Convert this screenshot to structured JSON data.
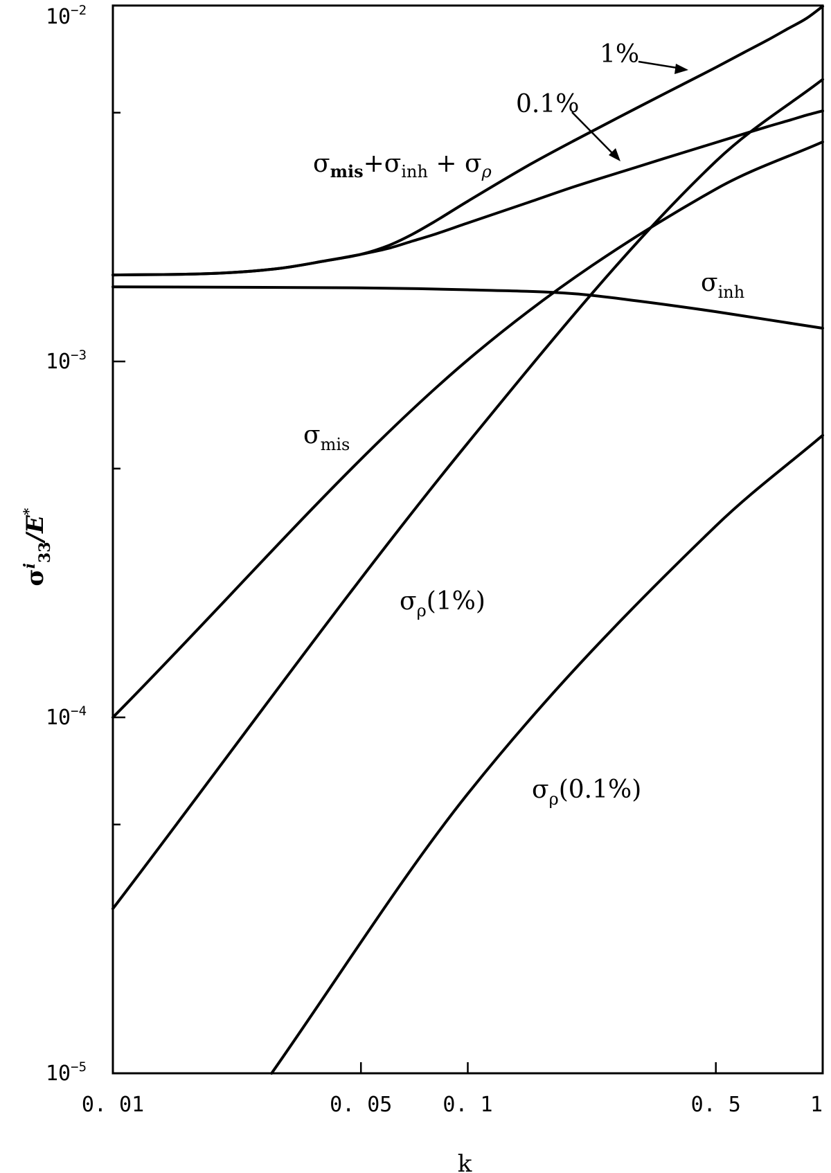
{
  "chart_data": {
    "type": "line",
    "xscale": "log",
    "yscale": "log",
    "xlim": [
      0.01,
      1
    ],
    "ylim": [
      1e-05,
      0.01
    ],
    "xlabel": "k",
    "ylabel": {
      "base": "σ",
      "sup": "i",
      "sub": "33",
      "rest": "/E",
      "sup2": "*"
    },
    "x_ticks": [
      {
        "value": 0.01,
        "label": "0. 01"
      },
      {
        "value": 0.05,
        "label": "0. 05"
      },
      {
        "value": 0.1,
        "label": "0. 1"
      },
      {
        "value": 0.5,
        "label": "0. 5"
      },
      {
        "value": 1,
        "label": "1"
      }
    ],
    "y_major_ticks": [
      {
        "value": 0.01,
        "base": "10",
        "exp": "−2"
      },
      {
        "value": 0.001,
        "base": "10",
        "exp": "−3"
      },
      {
        "value": 0.0001,
        "base": "10",
        "exp": "−4"
      },
      {
        "value": 1e-05,
        "base": "10",
        "exp": "−5"
      }
    ],
    "y_minor_ticks": [
      0.005,
      0.0005,
      5e-05
    ],
    "grid": false,
    "series": [
      {
        "x": [
          0.01,
          0.02,
          0.03,
          0.04,
          0.05,
          0.06,
          0.07,
          0.08,
          0.1,
          0.15,
          0.2,
          0.3,
          0.4,
          0.5,
          0.6,
          0.7,
          0.8,
          0.9,
          1.0
        ],
        "y": [
          0.00175,
          0.00177,
          0.00183,
          0.00192,
          0.002,
          0.00212,
          0.00228,
          0.00246,
          0.00282,
          0.00358,
          0.00418,
          0.00516,
          0.00598,
          0.0067,
          0.00738,
          0.008,
          0.00862,
          0.0092,
          0.00995
        ]
      },
      {
        "x": [
          0.01,
          0.02,
          0.03,
          0.04,
          0.05,
          0.06,
          0.07,
          0.08,
          0.1,
          0.15,
          0.2,
          0.3,
          0.4,
          0.5,
          0.6,
          0.7,
          0.8,
          0.9,
          1.0
        ],
        "y": [
          0.00175,
          0.00177,
          0.00183,
          0.00192,
          0.002,
          0.00208,
          0.00218,
          0.00227,
          0.00245,
          0.00281,
          0.0031,
          0.00352,
          0.00385,
          0.00412,
          0.00436,
          0.00457,
          0.00475,
          0.00492,
          0.00506
        ]
      },
      {
        "x": [
          0.01,
          0.05,
          0.1,
          0.2,
          0.3,
          0.5,
          0.7,
          1.0
        ],
        "y": [
          0.00162,
          0.00161,
          0.00159,
          0.00155,
          0.00148,
          0.00138,
          0.00131,
          0.00124
        ]
      },
      {
        "x": [
          0.01,
          0.1,
          0.5,
          1.0
        ],
        "y": [
          0.0001,
          0.00101,
          0.00305,
          0.00414
        ]
      },
      {
        "x": [
          0.01,
          0.1,
          0.5,
          1.0
        ],
        "y": [
          2.9e-05,
          0.00059,
          0.00365,
          0.0062
        ]
      },
      {
        "x": [
          0.028,
          0.1,
          0.5,
          1.0
        ],
        "y": [
          1e-05,
          6.1e-05,
          0.000345,
          0.00062
        ]
      }
    ]
  },
  "annotations": {
    "one_percent": "1%",
    "point_one_percent": "0.1%",
    "total": {
      "s1": "σ",
      "sub1": "mis",
      "plus1": "+σ",
      "sub2": "inh",
      "plus2": " + σ",
      "sub3": "ρ"
    },
    "sigma_inh": {
      "base": "σ",
      "sub": "inh"
    },
    "sigma_mis": {
      "base": "σ",
      "sub": "mis"
    },
    "sigma_rho_1": {
      "base": "σ",
      "sub": "ρ",
      "rest": "(1%)"
    },
    "sigma_rho_01": {
      "base": "σ",
      "sub": "ρ",
      "rest": "(0.1%)"
    }
  }
}
